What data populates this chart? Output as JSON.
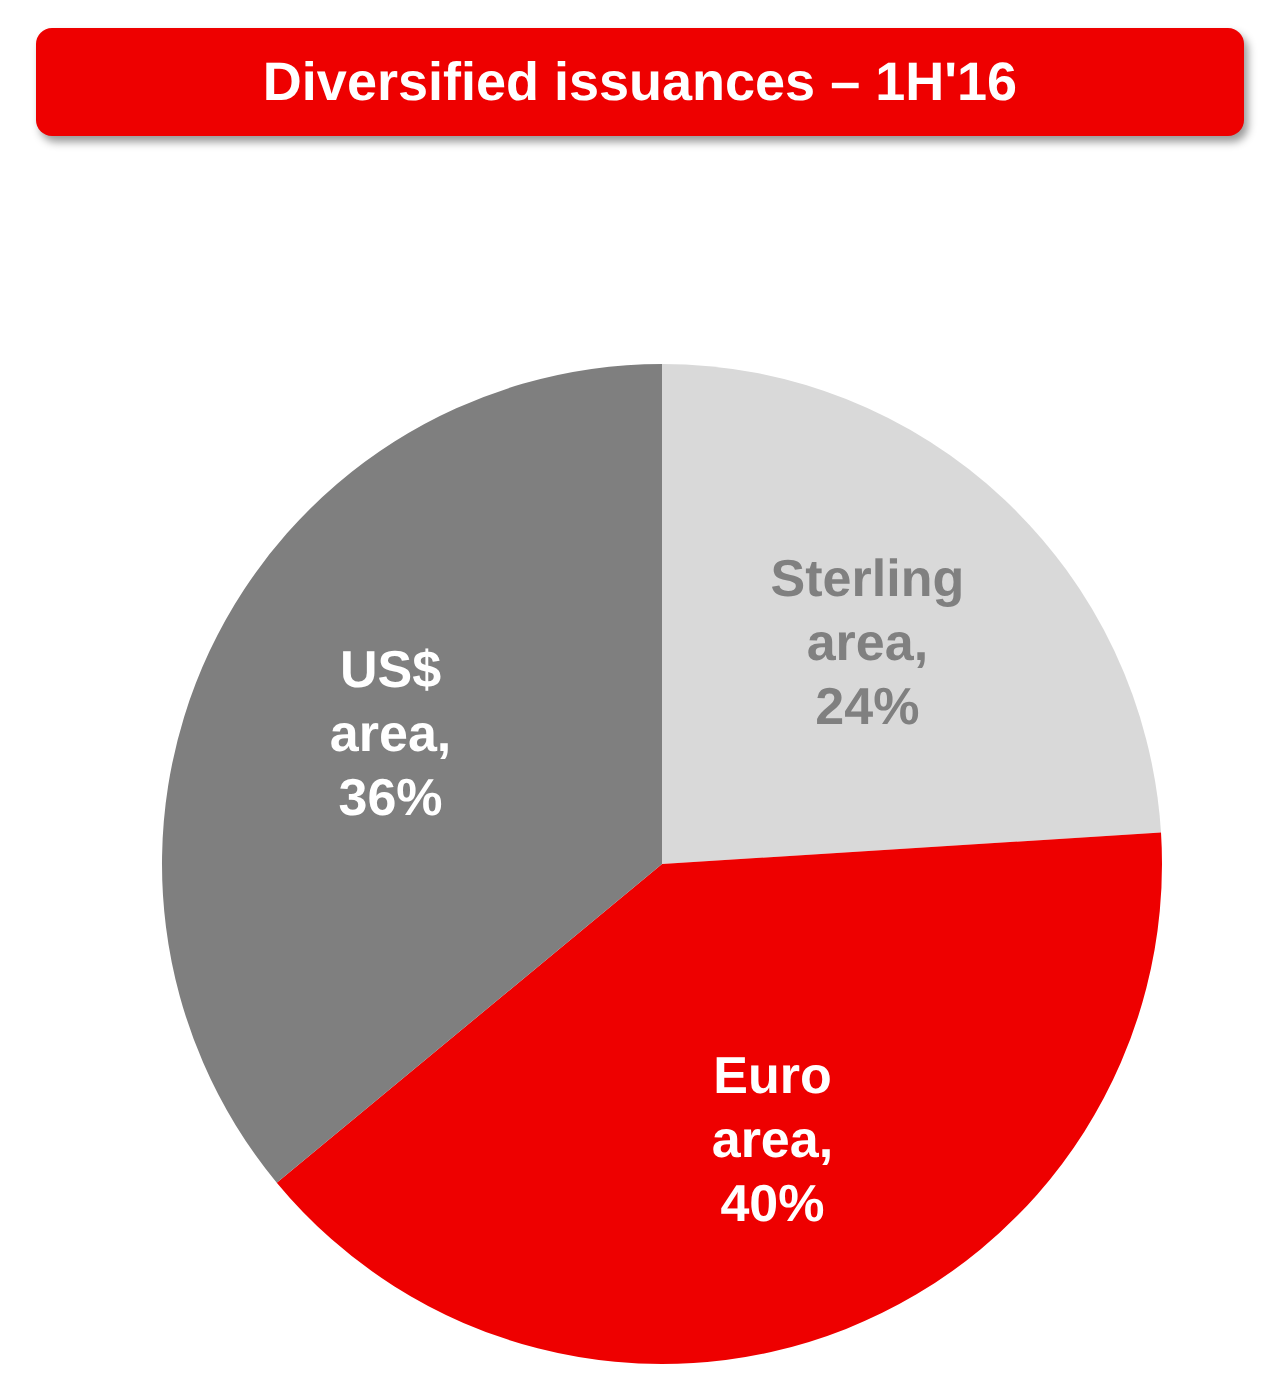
{
  "chart_data": {
    "type": "pie",
    "title": "Diversified issuances – 1H'16",
    "categories": [
      "Sterling area",
      "Euro area",
      "US$ area"
    ],
    "values": [
      24,
      40,
      36
    ],
    "colors": [
      "#d9d9d9",
      "#ee0000",
      "#7f7f7f"
    ],
    "value_labels": [
      ", 24%",
      ", 40%",
      ", 36%"
    ],
    "legend": false
  }
}
